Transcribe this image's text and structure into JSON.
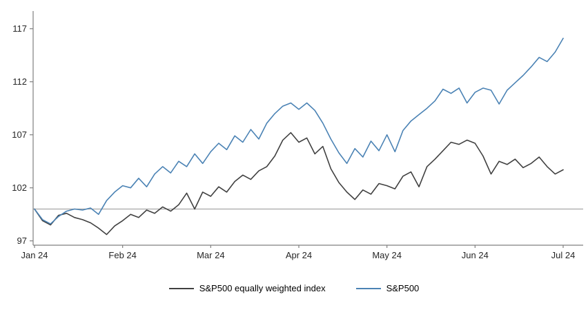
{
  "chart_data": {
    "type": "line",
    "title": "",
    "xlabel": "",
    "ylabel": "",
    "grid": false,
    "legend_position": "bottom",
    "x_axis": {
      "tick_labels": [
        "Jan 24",
        "Feb 24",
        "Mar 24",
        "Apr 24",
        "May 24",
        "Jun 24",
        "Jul 24"
      ]
    },
    "y_axis": {
      "min": 97,
      "max": 117,
      "ticks": [
        97,
        102,
        107,
        112,
        117
      ]
    },
    "reference_line": {
      "value": 100,
      "color": "#a6a6a6"
    },
    "axis_color": "#7f7f7f",
    "series": [
      {
        "name": "S&P500 equally weighted index",
        "color": "#404040",
        "values": [
          100.0,
          98.9,
          98.5,
          99.4,
          99.6,
          99.2,
          99.0,
          98.7,
          98.2,
          97.6,
          98.4,
          98.9,
          99.5,
          99.2,
          99.9,
          99.6,
          100.2,
          99.8,
          100.4,
          101.5,
          100.0,
          101.6,
          101.2,
          102.1,
          101.6,
          102.6,
          103.2,
          102.8,
          103.6,
          104.0,
          105.0,
          106.5,
          107.2,
          106.3,
          106.7,
          105.2,
          105.9,
          103.8,
          102.5,
          101.6,
          100.9,
          101.8,
          101.4,
          102.4,
          102.2,
          101.9,
          103.1,
          103.5,
          102.1,
          104.0,
          104.7,
          105.5,
          106.3,
          106.1,
          106.5,
          106.2,
          105.0,
          103.3,
          104.5,
          104.2,
          104.7,
          103.9,
          104.3,
          104.9,
          104.0,
          103.3,
          103.7
        ]
      },
      {
        "name": "S&P500",
        "color": "#4a82b4",
        "values": [
          100.0,
          99.0,
          98.6,
          99.3,
          99.8,
          100.0,
          99.9,
          100.1,
          99.5,
          100.8,
          101.6,
          102.2,
          102.0,
          102.9,
          102.1,
          103.3,
          104.0,
          103.4,
          104.5,
          104.0,
          105.2,
          104.3,
          105.4,
          106.2,
          105.6,
          106.9,
          106.3,
          107.5,
          106.6,
          108.1,
          109.0,
          109.7,
          110.0,
          109.4,
          110.0,
          109.3,
          108.1,
          106.6,
          105.3,
          104.3,
          105.7,
          104.9,
          106.4,
          105.5,
          107.0,
          105.4,
          107.4,
          108.3,
          108.9,
          109.5,
          110.2,
          111.3,
          110.9,
          111.4,
          110.0,
          111.0,
          111.4,
          111.2,
          109.9,
          111.2,
          111.9,
          112.6,
          113.4,
          114.3,
          113.9,
          114.8,
          116.1
        ]
      }
    ]
  }
}
